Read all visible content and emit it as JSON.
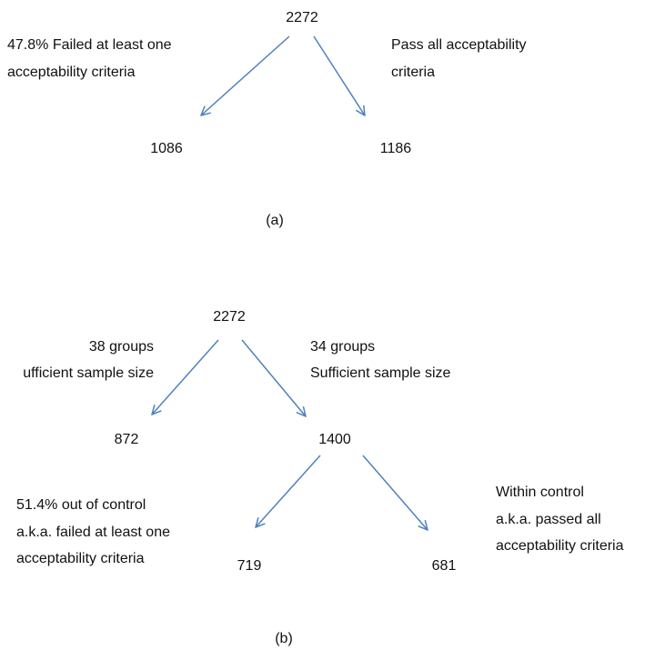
{
  "colors": {
    "arrow": "#4F81BD",
    "text": "#111111"
  },
  "diagram_a": {
    "root": "2272",
    "left_note": [
      "47.8% Failed at least one",
      "acceptability criteria"
    ],
    "right_note": [
      "Pass all acceptability",
      "criteria"
    ],
    "left_leaf": "1086",
    "right_leaf": "1186",
    "caption": "(a)"
  },
  "diagram_b": {
    "root": "2272",
    "left_note": [
      "38 groups",
      "ufficient sample size"
    ],
    "right_note": [
      "34 groups",
      "Sufficient sample size"
    ],
    "left_leaf": "872",
    "mid_node": "1400",
    "lower_left_note": [
      "51.4% out of control",
      "a.k.a. failed at least one",
      "acceptability criteria"
    ],
    "lower_right_note": [
      "Within control",
      "a.k.a. passed all",
      "acceptability criteria"
    ],
    "lower_left_leaf": "719",
    "lower_right_leaf": "681",
    "caption": "(b)"
  }
}
